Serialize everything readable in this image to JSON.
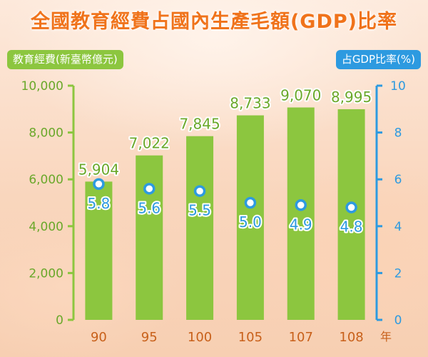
{
  "title": "全國教育經費占國內生產毛額(GDP)比率",
  "colors": {
    "bar": "#8cc63f",
    "line_marker": "#2d9ae0",
    "title": "#f0731b"
  },
  "chart_data": {
    "type": "bar",
    "title": "全國教育經費占國內生產毛額(GDP)比率",
    "xlabel": "年",
    "categories": [
      "90",
      "95",
      "100",
      "105",
      "107",
      "108"
    ],
    "series": [
      {
        "name": "教育經費(新臺幣億元)",
        "type": "bar",
        "axis": "left",
        "values": [
          5904,
          7022,
          7845,
          8733,
          9070,
          8995
        ],
        "labels": [
          "5,904",
          "7,022",
          "7,845",
          "8,733",
          "9,070",
          "8,995"
        ]
      },
      {
        "name": "占GDP比率(%)",
        "type": "scatter",
        "axis": "right",
        "values": [
          5.8,
          5.6,
          5.5,
          5.0,
          4.9,
          4.8
        ],
        "labels": [
          "5.8",
          "5.6",
          "5.5",
          "5.0",
          "4.9",
          "4.8"
        ]
      }
    ],
    "y_left": {
      "range": [
        0,
        10000
      ],
      "ticks": [
        "0",
        "2,000",
        "4,000",
        "6,000",
        "8,000",
        "10,000"
      ]
    },
    "y_right": {
      "range": [
        0,
        10
      ],
      "ticks": [
        "0",
        "2",
        "4",
        "6",
        "8",
        "10"
      ]
    },
    "grid": false
  }
}
